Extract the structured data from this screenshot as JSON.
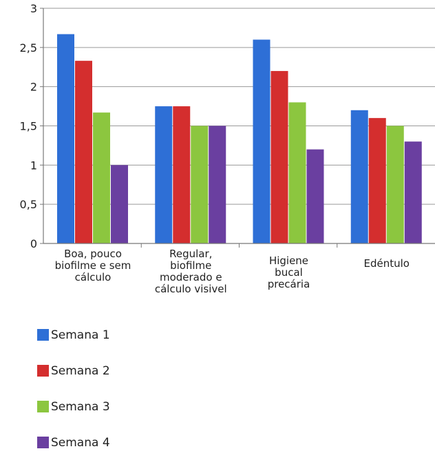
{
  "chart_data": {
    "type": "bar",
    "categories": [
      [
        "Boa, pouco",
        "biofilme e sem",
        "cálculo"
      ],
      [
        "Regular,",
        "biofilme",
        "moderado e",
        "cálculo visivel"
      ],
      [
        "Higiene",
        "bucal",
        "precária"
      ],
      [
        "Edéntulo"
      ]
    ],
    "series": [
      {
        "name": "Semana 1",
        "color": "#2e6fd6",
        "values": [
          2.67,
          1.75,
          2.6,
          1.7
        ]
      },
      {
        "name": "Semana 2",
        "color": "#d42e2e",
        "values": [
          2.33,
          1.75,
          2.2,
          1.6
        ]
      },
      {
        "name": "Semana 3",
        "color": "#8cc63f",
        "values": [
          1.67,
          1.5,
          1.8,
          1.5
        ]
      },
      {
        "name": "Semana 4",
        "color": "#6a3fa0",
        "values": [
          1.0,
          1.5,
          1.2,
          1.3
        ]
      }
    ],
    "yticks": [
      "0",
      "0,5",
      "1",
      "1,5",
      "2",
      "2,5",
      "3"
    ],
    "ylim": [
      0,
      3
    ],
    "grid": true,
    "legend_position": "bottom-left"
  }
}
